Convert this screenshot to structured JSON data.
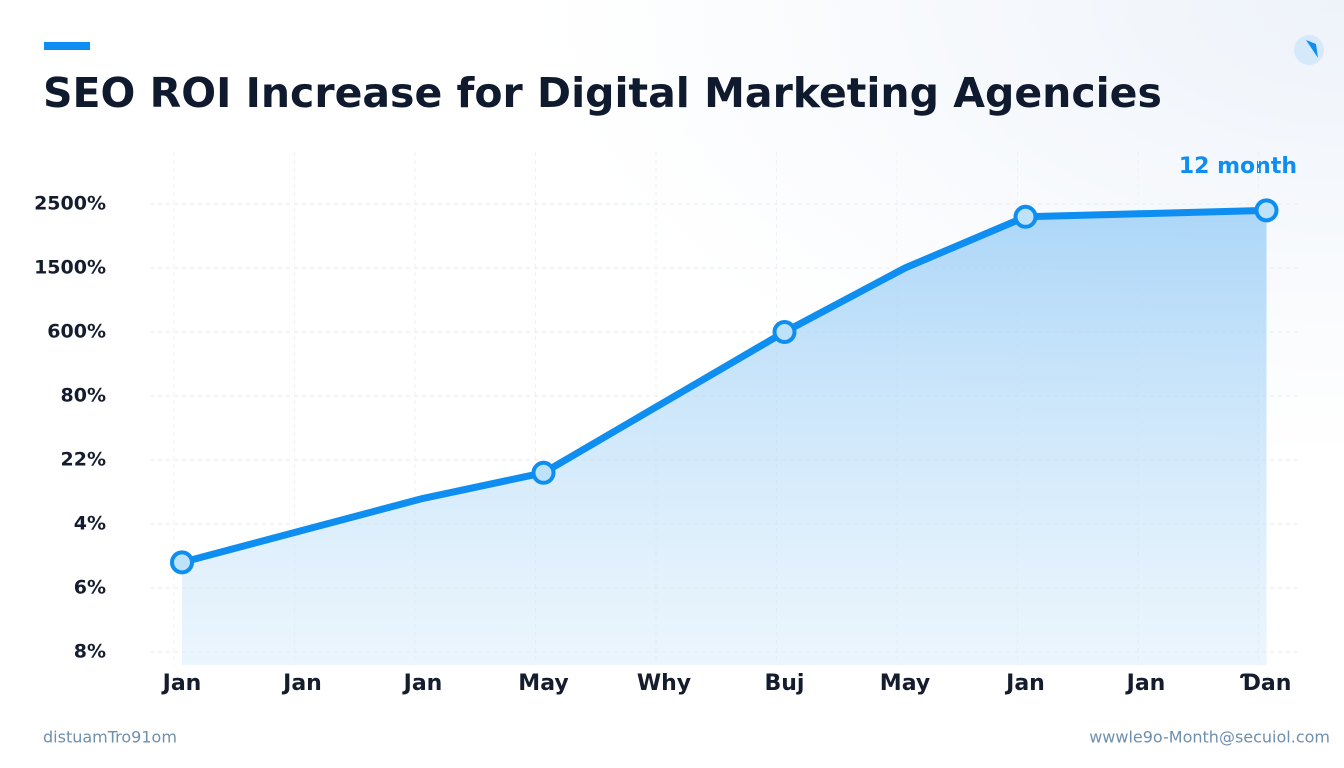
{
  "chart_data": {
    "type": "line",
    "title": "SEO ROI Increase for Digital Marketing Agencies",
    "annotation": "12 month",
    "footer_left": "distuamTro91om",
    "footer_right": "wwwle9o-Month@secuiol.com",
    "categories": [
      "Jan",
      "Jan",
      "Jan",
      "May",
      "Why",
      "Buj",
      "May",
      "Jan",
      "Jan",
      "Ɗan"
    ],
    "y_categories": [
      "8%",
      "6%",
      "4%",
      "22%",
      "80%",
      "600%",
      "1500%",
      "2500%"
    ],
    "grid": true,
    "series": [
      {
        "color": "#0d8ef0",
        "values": [
          1.4,
          1.9,
          2.4,
          2.8,
          3.9,
          5.0,
          6.0,
          6.8,
          6.85,
          6.9
        ],
        "marker_indices": [
          0,
          3,
          5,
          7,
          9
        ]
      }
    ]
  }
}
